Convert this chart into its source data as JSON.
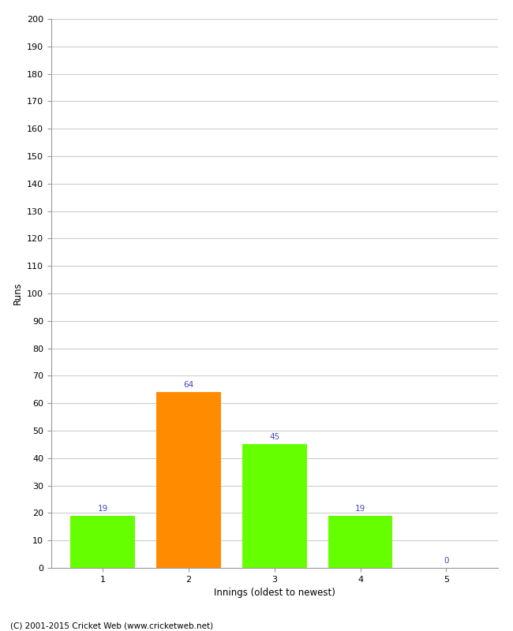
{
  "categories": [
    1,
    2,
    3,
    4,
    5
  ],
  "values": [
    19,
    64,
    45,
    19,
    0
  ],
  "bar_colors": [
    "#66ff00",
    "#ff8c00",
    "#66ff00",
    "#66ff00",
    "#66ff00"
  ],
  "xlabel": "Innings (oldest to newest)",
  "ylabel": "Runs",
  "ylim": [
    0,
    200
  ],
  "yticks": [
    0,
    10,
    20,
    30,
    40,
    50,
    60,
    70,
    80,
    90,
    100,
    110,
    120,
    130,
    140,
    150,
    160,
    170,
    180,
    190,
    200
  ],
  "label_color": "#4444cc",
  "label_fontsize": 7.5,
  "axis_label_fontsize": 8.5,
  "tick_fontsize": 8,
  "footer": "(C) 2001-2015 Cricket Web (www.cricketweb.net)",
  "background_color": "#ffffff",
  "grid_color": "#cccccc",
  "bar_width": 0.75
}
